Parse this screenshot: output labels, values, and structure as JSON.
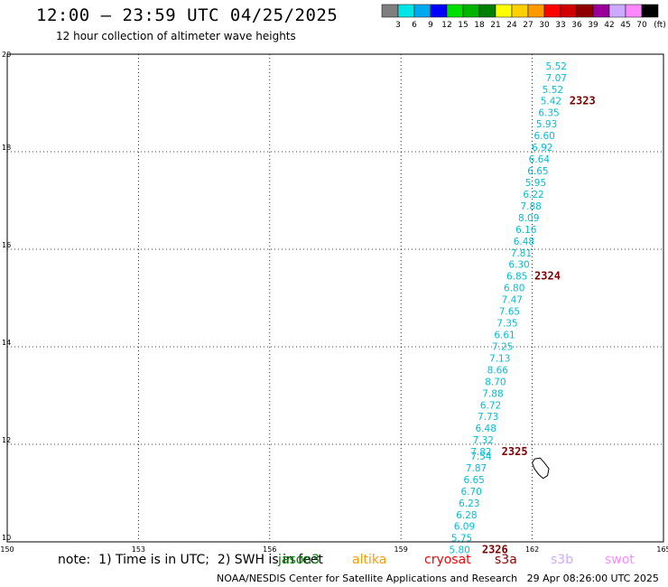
{
  "header": {
    "title": "12:00 – 23:59 UTC 04/25/2025",
    "subtitle": "12 hour collection of altimeter wave heights"
  },
  "colorbar": {
    "swatches": [
      "#7f7f7f",
      "#00e5e5",
      "#00a8f0",
      "#0000ff",
      "#00e000",
      "#00b400",
      "#008000",
      "#ffff00",
      "#ffd000",
      "#ff9900",
      "#ff0000",
      "#d00000",
      "#900000",
      "#990099",
      "#ccaaff",
      "#ff88ff",
      "#000000"
    ],
    "labels": [
      "3",
      "6",
      "9",
      "12",
      "15",
      "18",
      "21",
      "24",
      "27",
      "30",
      "33",
      "36",
      "39",
      "42",
      "45",
      "70"
    ],
    "unit": "(ft)"
  },
  "chart_data": {
    "type": "scatter",
    "xlim": [
      150,
      165
    ],
    "ylim": [
      10,
      20
    ],
    "x_ticks": [
      "150",
      "153",
      "156",
      "159",
      "162",
      "165"
    ],
    "y_ticks": [
      "10",
      "12",
      "14",
      "16",
      "18",
      "20"
    ],
    "grid": true,
    "point_color": "#00bcd8",
    "track_label_color": "#800000",
    "points": [
      {
        "x": 162.55,
        "y": 19.76,
        "v": "5.52"
      },
      {
        "x": 162.55,
        "y": 19.52,
        "v": "7.07"
      },
      {
        "x": 162.47,
        "y": 19.28,
        "v": "5.52"
      },
      {
        "x": 162.43,
        "y": 19.05,
        "v": "5.42"
      },
      {
        "x": 162.38,
        "y": 18.81,
        "v": "6.35"
      },
      {
        "x": 162.33,
        "y": 18.57,
        "v": "5.93"
      },
      {
        "x": 162.28,
        "y": 18.33,
        "v": "6.60"
      },
      {
        "x": 162.23,
        "y": 18.09,
        "v": "6.92"
      },
      {
        "x": 162.16,
        "y": 17.85,
        "v": "6.64"
      },
      {
        "x": 162.13,
        "y": 17.61,
        "v": "6.65"
      },
      {
        "x": 162.08,
        "y": 17.37,
        "v": "5.95"
      },
      {
        "x": 162.03,
        "y": 17.13,
        "v": "6.22"
      },
      {
        "x": 161.97,
        "y": 16.89,
        "v": "7.88"
      },
      {
        "x": 161.92,
        "y": 16.65,
        "v": "8.09"
      },
      {
        "x": 161.86,
        "y": 16.41,
        "v": "6.16"
      },
      {
        "x": 161.81,
        "y": 16.17,
        "v": "6.48"
      },
      {
        "x": 161.75,
        "y": 15.93,
        "v": "7.81"
      },
      {
        "x": 161.7,
        "y": 15.69,
        "v": "6.30"
      },
      {
        "x": 161.65,
        "y": 15.45,
        "v": "6.85"
      },
      {
        "x": 161.59,
        "y": 15.21,
        "v": "6.80"
      },
      {
        "x": 161.54,
        "y": 14.97,
        "v": "7.47"
      },
      {
        "x": 161.48,
        "y": 14.73,
        "v": "7.65"
      },
      {
        "x": 161.43,
        "y": 14.49,
        "v": "7.35"
      },
      {
        "x": 161.37,
        "y": 14.25,
        "v": "6.61"
      },
      {
        "x": 161.32,
        "y": 14.01,
        "v": "7.25"
      },
      {
        "x": 161.26,
        "y": 13.77,
        "v": "7.13"
      },
      {
        "x": 161.21,
        "y": 13.53,
        "v": "8.66"
      },
      {
        "x": 161.16,
        "y": 13.29,
        "v": "8.70"
      },
      {
        "x": 161.1,
        "y": 13.05,
        "v": "7.88"
      },
      {
        "x": 161.05,
        "y": 12.81,
        "v": "6.72"
      },
      {
        "x": 160.99,
        "y": 12.57,
        "v": "7.73"
      },
      {
        "x": 160.94,
        "y": 12.33,
        "v": "6.48"
      },
      {
        "x": 160.88,
        "y": 12.09,
        "v": "7.32"
      },
      {
        "x": 160.83,
        "y": 11.85,
        "v": "7.82"
      },
      {
        "x": 160.83,
        "y": 11.76,
        "v": "7.54"
      },
      {
        "x": 160.72,
        "y": 11.52,
        "v": "7.87"
      },
      {
        "x": 160.67,
        "y": 11.28,
        "v": "6.65"
      },
      {
        "x": 160.61,
        "y": 11.04,
        "v": "6.70"
      },
      {
        "x": 160.56,
        "y": 10.8,
        "v": "6.23"
      },
      {
        "x": 160.5,
        "y": 10.56,
        "v": "6.28"
      },
      {
        "x": 160.45,
        "y": 10.32,
        "v": "6.09"
      },
      {
        "x": 160.39,
        "y": 10.08,
        "v": "5.75"
      },
      {
        "x": 160.34,
        "y": 9.84,
        "v": "5.80"
      }
    ],
    "track_labels": [
      {
        "text": "2323",
        "x": 162.85,
        "y": 19.05
      },
      {
        "text": "2324",
        "x": 162.05,
        "y": 15.45
      },
      {
        "text": "2325",
        "x": 161.3,
        "y": 11.85
      },
      {
        "text": "2326",
        "x": 160.85,
        "y": 9.84
      }
    ],
    "coastline": [
      [
        162.05,
        11.7
      ],
      [
        162.18,
        11.72
      ],
      [
        162.28,
        11.62
      ],
      [
        162.38,
        11.5
      ],
      [
        162.35,
        11.36
      ],
      [
        162.25,
        11.3
      ],
      [
        162.15,
        11.38
      ],
      [
        162.05,
        11.5
      ],
      [
        162.0,
        11.62
      ],
      [
        162.05,
        11.7
      ]
    ]
  },
  "notes": {
    "text": "note:  1) Time is in UTC;  2) SWH is in feet",
    "satellites": [
      {
        "name": "jason3",
        "color": "#008000"
      },
      {
        "name": "altika",
        "color": "#ff9900"
      },
      {
        "name": "cryosat",
        "color": "#ff0000"
      },
      {
        "name": "s3a",
        "color": "#900000"
      },
      {
        "name": "s3b",
        "color": "#ccaaff"
      },
      {
        "name": "swot",
        "color": "#ff88ff"
      }
    ]
  },
  "footer": {
    "credit": "NOAA/NESDIS Center for Satellite Applications and Research",
    "timestamp": "29 Apr 08:26:00 UTC 2025"
  }
}
